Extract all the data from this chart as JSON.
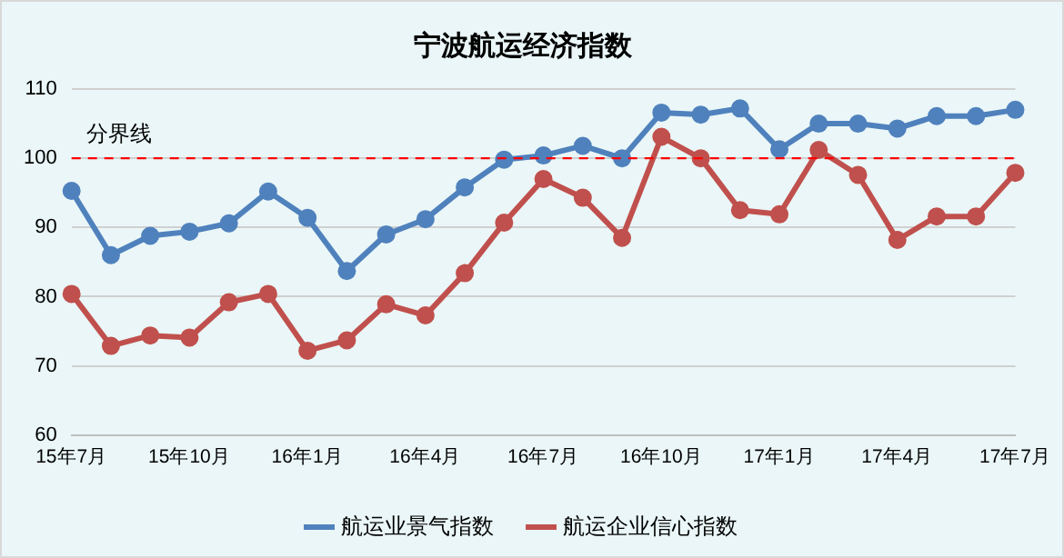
{
  "chart_data": {
    "type": "line",
    "title": "宁波航运经济指数",
    "categories": [
      "15年7月",
      null,
      null,
      "15年10月",
      null,
      null,
      "16年1月",
      null,
      null,
      "16年4月",
      null,
      null,
      "16年7月",
      null,
      null,
      "16年10月",
      null,
      null,
      "17年1月",
      null,
      null,
      "17年4月",
      null,
      null,
      "17年7月"
    ],
    "series": [
      {
        "name": "航运业景气指数",
        "color": "#4f81bd",
        "values": [
          95.3,
          86,
          88.8,
          89.4,
          90.6,
          95.2,
          91.4,
          83.7,
          89,
          91.2,
          95.8,
          99.8,
          100.4,
          101.8,
          100,
          106.6,
          106.3,
          107.2,
          101.3,
          105,
          105,
          104.3,
          106.1,
          106.1,
          107
        ]
      },
      {
        "name": "航运企业信心指数",
        "color": "#c0504d",
        "values": [
          80.4,
          72.9,
          74.4,
          74.1,
          79.2,
          80.4,
          72.2,
          73.7,
          78.9,
          77.3,
          83.4,
          90.7,
          97,
          94.3,
          88.5,
          103.1,
          100,
          92.5,
          91.9,
          101.2,
          97.6,
          88.2,
          91.6,
          91.6,
          97.9
        ]
      }
    ],
    "ylim": [
      60,
      110
    ],
    "yticks": [
      60,
      70,
      80,
      90,
      100,
      110
    ],
    "grid": "y",
    "legend": "bottom",
    "marker": "circle",
    "line_style": "solid",
    "ref_lines": [
      {
        "axis": "y",
        "value": 100,
        "label": "分界线",
        "color": "#ff0000",
        "line_style": "dashed"
      }
    ]
  }
}
